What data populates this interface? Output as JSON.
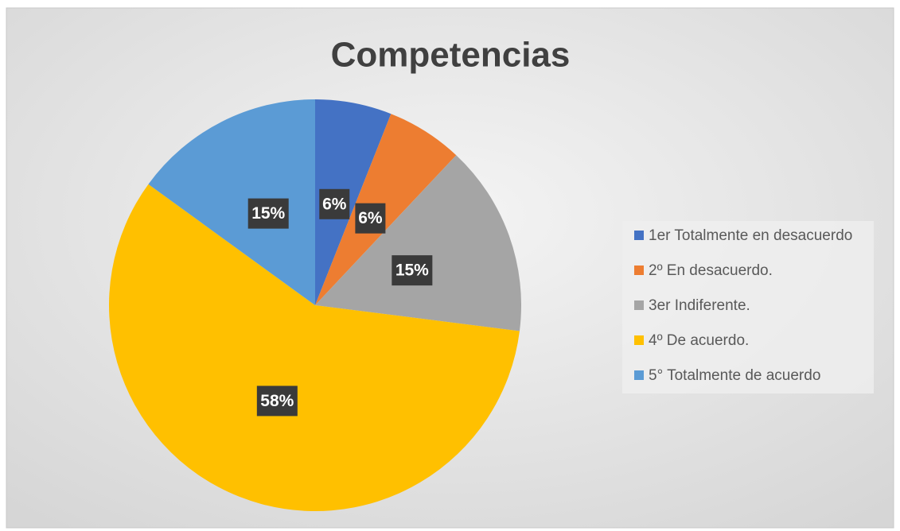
{
  "chart_data": {
    "type": "pie",
    "title": "Competencias",
    "categories": [
      "1er Totalmente en desacuerdo",
      "2º En desacuerdo.",
      "3er Indiferente.",
      "4º De acuerdo.",
      "5° Totalmente de acuerdo"
    ],
    "values": [
      6,
      6,
      15,
      58,
      15
    ],
    "value_labels": [
      "6%",
      "6%",
      "15%",
      "58%",
      "15%"
    ],
    "colors": [
      "#4472c4",
      "#ed7d31",
      "#a5a5a5",
      "#ffc000",
      "#5b9bd5"
    ],
    "legend": "right"
  }
}
